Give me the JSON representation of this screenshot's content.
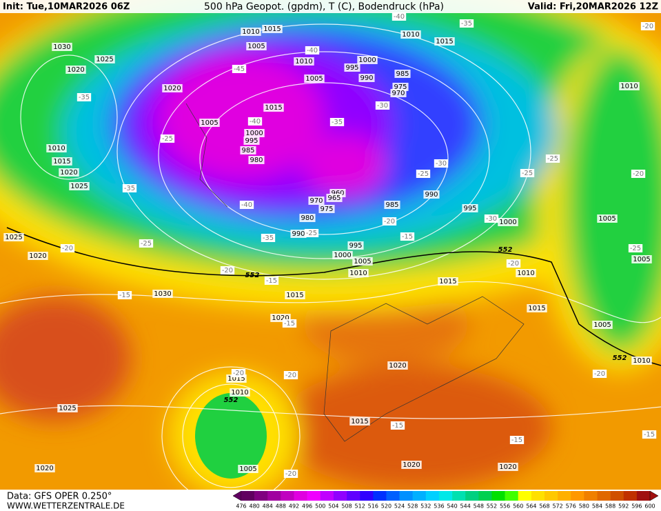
{
  "header": {
    "init": "Init: Tue,10MAR2026 06Z",
    "title": "500 hPa Geopot. (gpdm), T (C), Bodendruck (hPa)",
    "valid": "Valid: Fri,20MAR2026 12Z"
  },
  "map": {
    "pressure_labels": [
      "1030",
      "1025",
      "1020",
      "1020",
      "1010",
      "1015",
      "1020",
      "1025",
      "1005",
      "1000",
      "995",
      "985",
      "980",
      "1010",
      "1015",
      "1005",
      "1010",
      "1005",
      "1015",
      "1000",
      "995",
      "990",
      "985",
      "975",
      "970",
      "960",
      "965",
      "970",
      "975",
      "980",
      "990",
      "985",
      "990",
      "995",
      "1000",
      "995",
      "1000",
      "1005",
      "1010",
      "1015",
      "1015",
      "1020",
      "1030",
      "1025",
      "1020",
      "1020",
      "1015",
      "1010",
      "1025",
      "1020",
      "1015",
      "1020",
      "1020",
      "1005",
      "1010",
      "1015",
      "1005",
      "1010",
      "1005",
      "1005",
      "1010",
      "1010",
      "1015"
    ],
    "temperature_labels": [
      "-35",
      "-25",
      "-35",
      "-40",
      "-25",
      "-20",
      "-20",
      "-15",
      "-15",
      "-15",
      "-35",
      "-25",
      "-40",
      "-45",
      "-40",
      "-35",
      "-30",
      "-25",
      "-30",
      "-20",
      "-15",
      "-30",
      "-25",
      "-25",
      "-20",
      "-25",
      "-20",
      "-35",
      "-40",
      "-20",
      "-20",
      "-20",
      "-20",
      "-15",
      "-15",
      "-20",
      "-15"
    ],
    "geopotential_labels": [
      "552",
      "552",
      "552",
      "552"
    ]
  },
  "footer": {
    "data": "Data: GFS OPER 0.250°",
    "site": "WWW.WETTERZENTRALE.DE"
  },
  "colorbar": {
    "labels": [
      476,
      480,
      484,
      488,
      492,
      496,
      500,
      504,
      508,
      512,
      516,
      520,
      524,
      528,
      532,
      536,
      540,
      544,
      548,
      552,
      556,
      560,
      564,
      568,
      572,
      576,
      580,
      584,
      588,
      592,
      596,
      600
    ],
    "colors": [
      "#600060",
      "#800080",
      "#a000a0",
      "#c000c0",
      "#e000e0",
      "#f000ff",
      "#c000ff",
      "#9000ff",
      "#6000ff",
      "#3000ff",
      "#0030ff",
      "#0060ff",
      "#0090ff",
      "#00b0ff",
      "#00d0ff",
      "#00e8e8",
      "#00e0b0",
      "#00d080",
      "#00d050",
      "#00e000",
      "#40ff00",
      "#ffff00",
      "#ffe000",
      "#ffc800",
      "#ffb000",
      "#ff9800",
      "#f08000",
      "#e06800",
      "#d05000",
      "#c03000",
      "#a01010"
    ]
  }
}
